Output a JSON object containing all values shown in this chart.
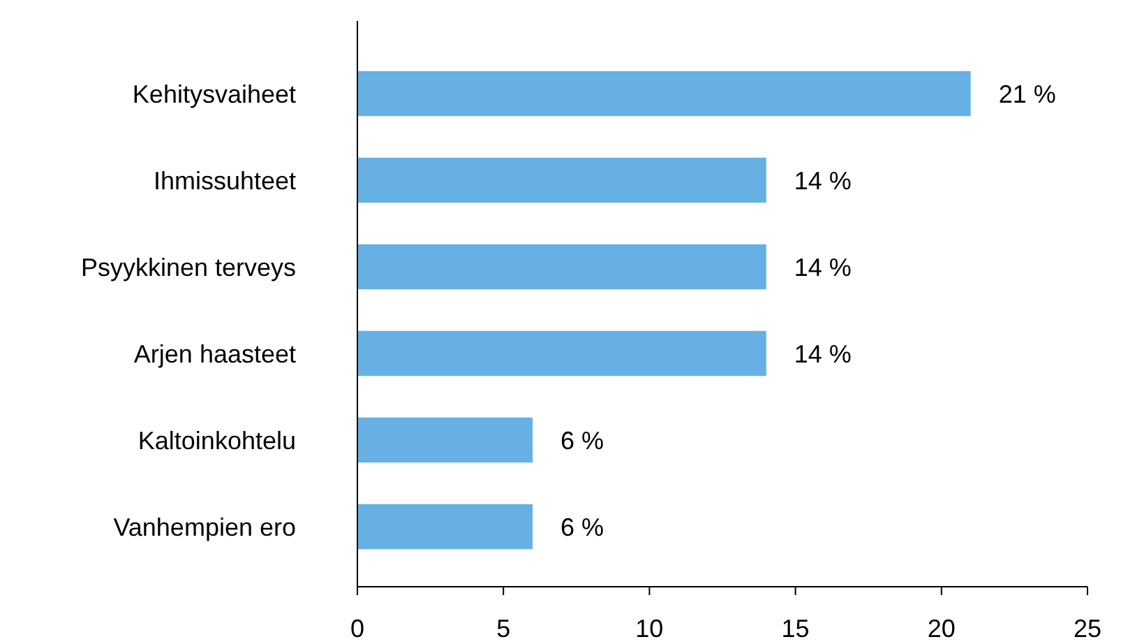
{
  "chart_data": {
    "type": "bar",
    "orientation": "horizontal",
    "categories": [
      "Kehitysvaiheet",
      "Ihmissuhteet",
      "Psyykkinen terveys",
      "Arjen haasteet",
      "Kaltoinkohtelu",
      "Vanhempien ero"
    ],
    "values": [
      21,
      14,
      14,
      14,
      6,
      6
    ],
    "value_labels": [
      "21 %",
      "14 %",
      "14 %",
      "14 %",
      "6 %",
      "6 %"
    ],
    "color": "#67b0e3",
    "xlim": [
      0,
      25
    ],
    "xticks": [
      0,
      5,
      10,
      15,
      20,
      25
    ]
  }
}
